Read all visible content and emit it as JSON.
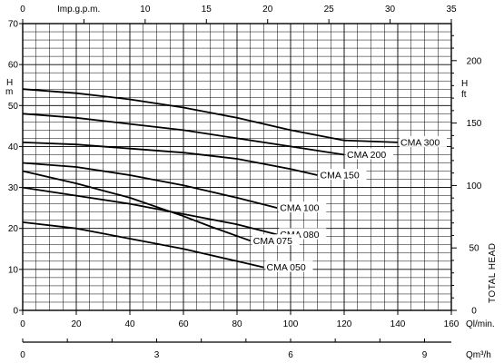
{
  "chart_data": {
    "type": "line",
    "title": "",
    "x_primary": {
      "label": "Ql/min.",
      "range": [
        0,
        160
      ],
      "ticks": [
        0,
        20,
        40,
        60,
        80,
        100,
        120,
        140,
        160
      ]
    },
    "x_top": {
      "label": "Imp.g.p.m.",
      "range": [
        0,
        35
      ],
      "ticks": [
        0,
        5,
        10,
        15,
        20,
        25,
        30,
        35
      ],
      "label_ticks": [
        "0",
        "",
        "10",
        "15",
        "20",
        "25",
        "30",
        "35"
      ]
    },
    "x_bottom": {
      "label": "Qm³/h",
      "range": [
        0,
        9.6
      ],
      "ticks": [
        0,
        3,
        6,
        9
      ]
    },
    "y_left": {
      "label_top": "H",
      "label_bottom": "m",
      "range": [
        0,
        70
      ],
      "ticks": [
        0,
        10,
        20,
        30,
        40,
        50,
        60,
        70
      ]
    },
    "y_right": {
      "label_top": "H",
      "label_bottom": "ft",
      "title": "TOTAL HEAD",
      "range": [
        0,
        229.66
      ],
      "ticks": [
        0,
        50,
        100,
        150,
        200
      ]
    },
    "grid": true,
    "series": [
      {
        "name": "CMA 300",
        "x": [
          0,
          20,
          40,
          60,
          80,
          100,
          120,
          140
        ],
        "y": [
          54,
          53,
          51.5,
          49.5,
          47,
          44,
          41.5,
          41
        ]
      },
      {
        "name": "CMA 200",
        "x": [
          0,
          20,
          40,
          60,
          80,
          100,
          120
        ],
        "y": [
          48,
          47,
          45.5,
          44,
          42,
          40,
          38
        ]
      },
      {
        "name": "CMA 150",
        "x": [
          0,
          20,
          40,
          60,
          80,
          100,
          110
        ],
        "y": [
          41,
          40.5,
          39.5,
          38.5,
          37,
          34.5,
          33
        ]
      },
      {
        "name": "CMA 100",
        "x": [
          0,
          20,
          40,
          60,
          80,
          95
        ],
        "y": [
          36,
          35,
          33,
          30.5,
          27.5,
          25
        ]
      },
      {
        "name": "CMA 080",
        "x": [
          0,
          20,
          40,
          60,
          80,
          95
        ],
        "y": [
          30,
          28,
          26,
          23.5,
          21,
          18.5
        ]
      },
      {
        "name": "CMA 075",
        "x": [
          0,
          20,
          40,
          60,
          70,
          85
        ],
        "y": [
          34,
          31,
          27.5,
          23,
          20.5,
          17
        ]
      },
      {
        "name": "CMA 050",
        "x": [
          0,
          20,
          40,
          60,
          80,
          90
        ],
        "y": [
          21.5,
          20,
          17.5,
          15,
          12,
          10.5
        ]
      }
    ]
  }
}
